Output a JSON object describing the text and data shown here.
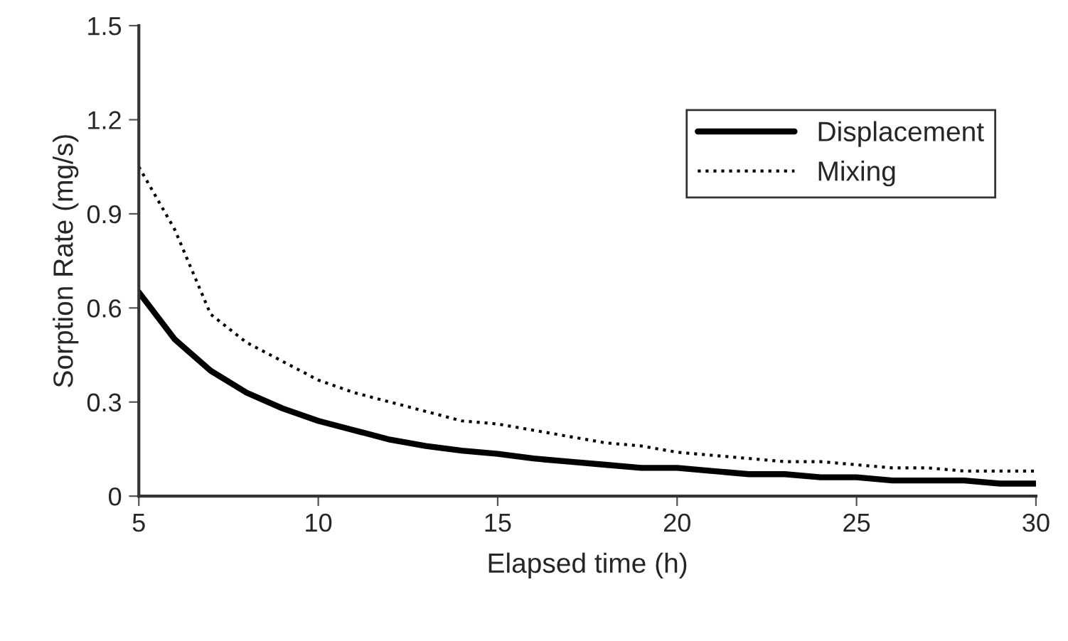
{
  "chart_data": {
    "type": "line",
    "xlabel": "Elapsed time (h)",
    "ylabel": "Sorption Rate (mg/s)",
    "x": [
      5,
      6,
      7,
      8,
      9,
      10,
      11,
      12,
      13,
      14,
      15,
      16,
      17,
      18,
      19,
      20,
      21,
      22,
      23,
      24,
      25,
      26,
      27,
      28,
      29,
      30
    ],
    "series": [
      {
        "name": "Displacement",
        "color": "#000000",
        "line_style": "solid",
        "values": [
          0.65,
          0.5,
          0.4,
          0.33,
          0.28,
          0.24,
          0.21,
          0.18,
          0.16,
          0.145,
          0.135,
          0.12,
          0.11,
          0.1,
          0.09,
          0.09,
          0.08,
          0.07,
          0.07,
          0.06,
          0.06,
          0.05,
          0.05,
          0.05,
          0.04,
          0.04
        ]
      },
      {
        "name": "Mixing",
        "color": "#000000",
        "line_style": "dotted",
        "values": [
          1.05,
          0.85,
          0.58,
          0.49,
          0.43,
          0.37,
          0.33,
          0.3,
          0.27,
          0.24,
          0.23,
          0.21,
          0.19,
          0.17,
          0.16,
          0.14,
          0.13,
          0.12,
          0.11,
          0.11,
          0.1,
          0.09,
          0.09,
          0.08,
          0.08,
          0.08
        ]
      }
    ],
    "xlim": [
      5,
      30
    ],
    "xticks": [
      5,
      10,
      15,
      20,
      25,
      30
    ],
    "ylim": [
      0,
      1.5
    ],
    "yticks": [
      {
        "value": 0,
        "label": "0"
      },
      0.3,
      0.6,
      0.9,
      1.2,
      1.5
    ],
    "grid": false,
    "legend": "top right",
    "marker": "none"
  }
}
